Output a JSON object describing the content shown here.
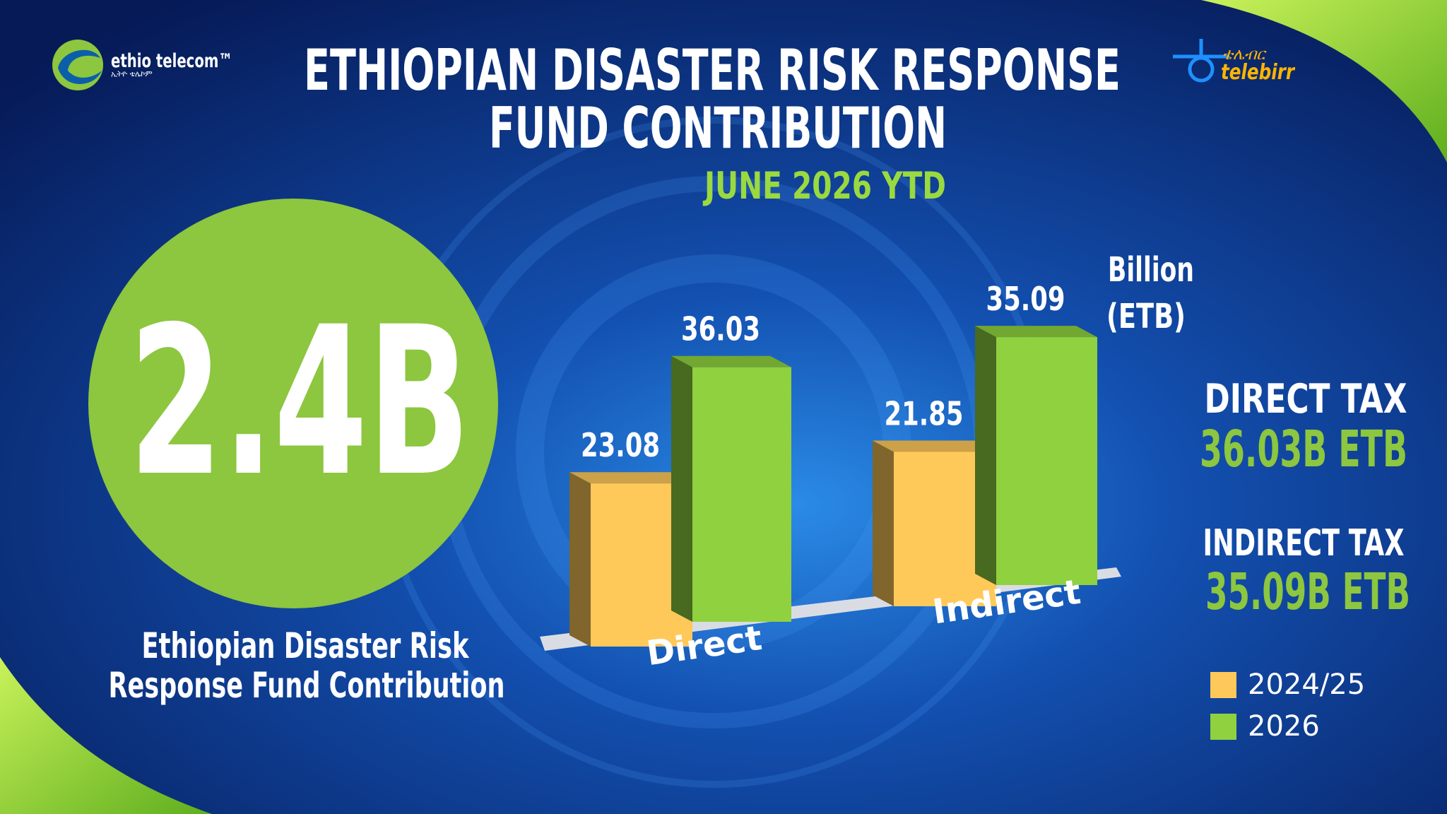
{
  "header": {
    "brand_left": "ethio telecom™",
    "brand_left_sub": "ኢትዮ ቴሌኮም",
    "brand_right": "telebirr",
    "brand_right_sub": "ቴሌብር"
  },
  "chart_data": {
    "type": "bar",
    "title": [
      "ETHIOPIAN DISASTER RISK RESPONSE",
      "FUND CONTRIBUTION"
    ],
    "subtitle": "JUNE 2026 YTD",
    "unit_label": [
      "Billion",
      "(ETB)"
    ],
    "categories": [
      "Direct",
      "Indirect"
    ],
    "series": [
      {
        "name": "2024/25",
        "color": "#ffc95a",
        "values": [
          23.08,
          21.85
        ]
      },
      {
        "name": "2026",
        "color": "#8fd13f",
        "values": [
          36.03,
          35.09
        ]
      }
    ]
  },
  "highlight": {
    "value": "2.4B",
    "caption": [
      "Ethiopian Disaster Risk",
      "Response Fund Contribution"
    ]
  },
  "summary": [
    {
      "label": "DIRECT TAX",
      "value": "36.03B ETB"
    },
    {
      "label": "INDIRECT TAX",
      "value": "35.09B ETB"
    }
  ]
}
